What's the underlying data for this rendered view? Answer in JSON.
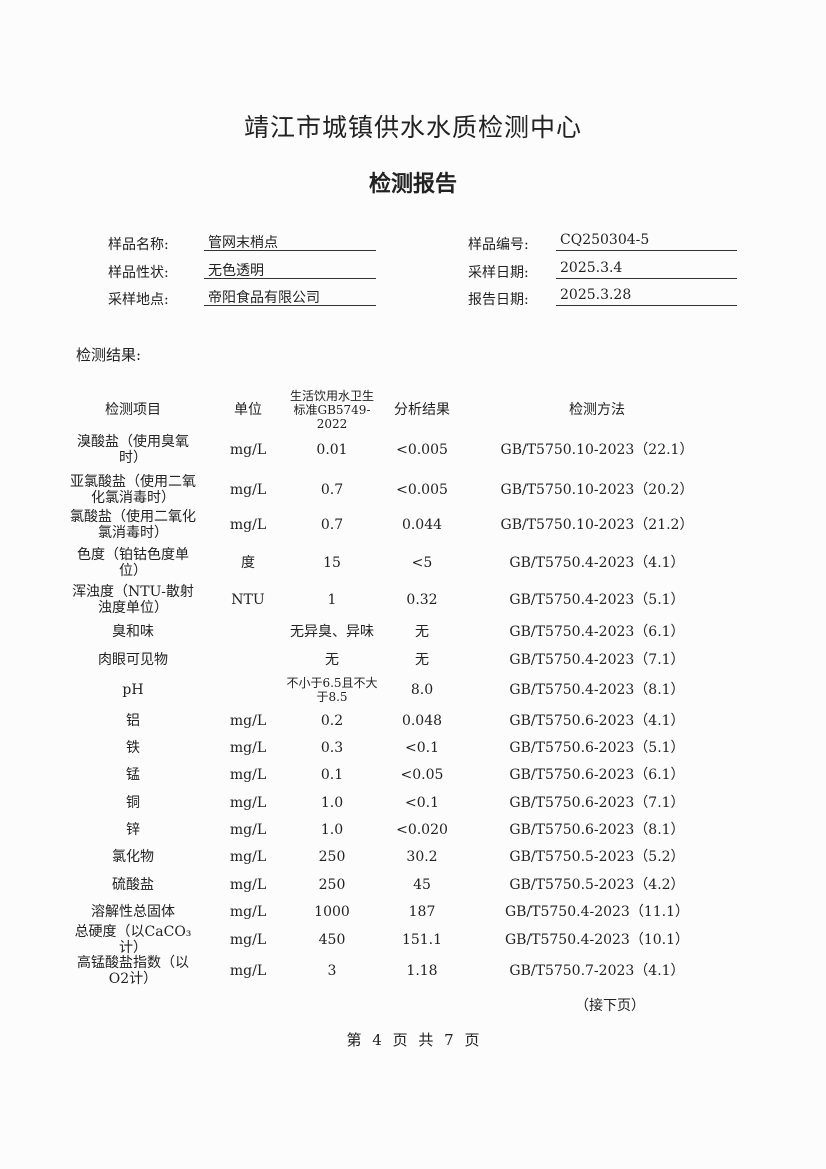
{
  "header": {
    "title": "靖江市城镇供水水质检测中心",
    "subtitle": "检测报告"
  },
  "info": {
    "sample_name_label": "样品名称:",
    "sample_name": "管网末梢点",
    "sample_state_label": "样品性状:",
    "sample_state": "无色透明",
    "location_label": "采样地点:",
    "location": "帝阳食品有限公司",
    "sample_no_label": "样品编号:",
    "sample_no": "CQ250304-5",
    "sample_date_label": "采样日期:",
    "sample_date": "2025.3.4",
    "report_date_label": "报告日期:",
    "report_date": "2025.3.28"
  },
  "results_label": "检测结果:",
  "table": {
    "headers": [
      "检测项目",
      "单位",
      "生活饮用水卫生标准GB5749-2022",
      "分析结果",
      "检测方法"
    ],
    "rows": [
      [
        "溴酸盐（使用臭氧时）",
        "mg/L",
        "0.01",
        "<0.005",
        "GB/T5750.10-2023（22.1）"
      ],
      [
        "亚氯酸盐（使用二氧化氯消毒时）",
        "mg/L",
        "0.7",
        "<0.005",
        "GB/T5750.10-2023（20.2）"
      ],
      [
        "氯酸盐（使用二氧化氯消毒时）",
        "mg/L",
        "0.7",
        "0.044",
        "GB/T5750.10-2023（21.2）"
      ],
      [
        "色度（铂钴色度单位）",
        "度",
        "15",
        "<5",
        "GB/T5750.4-2023（4.1）"
      ],
      [
        "浑浊度（NTU-散射浊度单位）",
        "NTU",
        "1",
        "0.32",
        "GB/T5750.4-2023（5.1）"
      ],
      [
        "臭和味",
        "",
        "无异臭、异味",
        "无",
        "GB/T5750.4-2023（6.1）"
      ],
      [
        "肉眼可见物",
        "",
        "无",
        "无",
        "GB/T5750.4-2023（7.1）"
      ],
      [
        "pH",
        "",
        "不小于6.5且不大于8.5",
        "8.0",
        "GB/T5750.4-2023（8.1）"
      ],
      [
        "铝",
        "mg/L",
        "0.2",
        "0.048",
        "GB/T5750.6-2023（4.1）"
      ],
      [
        "铁",
        "mg/L",
        "0.3",
        "<0.1",
        "GB/T5750.6-2023（5.1）"
      ],
      [
        "锰",
        "mg/L",
        "0.1",
        "<0.05",
        "GB/T5750.6-2023（6.1）"
      ],
      [
        "铜",
        "mg/L",
        "1.0",
        "<0.1",
        "GB/T5750.6-2023（7.1）"
      ],
      [
        "锌",
        "mg/L",
        "1.0",
        "<0.020",
        "GB/T5750.6-2023（8.1）"
      ],
      [
        "氯化物",
        "mg/L",
        "250",
        "30.2",
        "GB/T5750.5-2023（5.2）"
      ],
      [
        "硫酸盐",
        "mg/L",
        "250",
        "45",
        "GB/T5750.5-2023（4.2）"
      ],
      [
        "溶解性总固体",
        "mg/L",
        "1000",
        "187",
        "GB/T5750.4-2023（11.1）"
      ],
      [
        "总硬度（以CaCO₃计）",
        "mg/L",
        "450",
        "151.1",
        "GB/T5750.4-2023（10.1）"
      ],
      [
        "高锰酸盐指数（以O2计）",
        "mg/L",
        "3",
        "1.18",
        "GB/T5750.7-2023（4.1）"
      ]
    ]
  },
  "continued": "（接下页）",
  "footer": "第 4 页 共 7 页"
}
